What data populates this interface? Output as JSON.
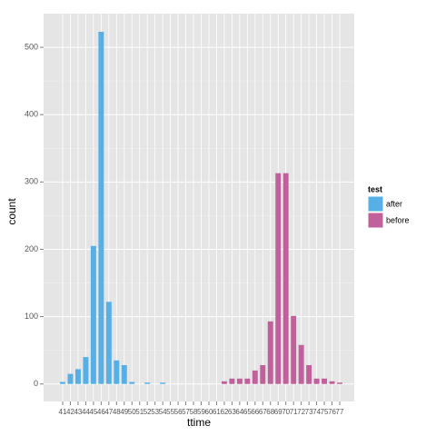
{
  "chart_data": {
    "type": "bar",
    "x_label": "ttime",
    "y_label": "count",
    "legend_title": "test",
    "categories": [
      "41",
      "42",
      "43",
      "44",
      "45",
      "46",
      "47",
      "48",
      "49",
      "50",
      "51",
      "52",
      "53",
      "54",
      "55",
      "56",
      "57",
      "58",
      "59",
      "60",
      "61",
      "62",
      "63",
      "64",
      "65",
      "66",
      "67",
      "68",
      "69",
      "70",
      "71",
      "72",
      "73",
      "74",
      "75",
      "76",
      "77"
    ],
    "series": [
      {
        "name": "after",
        "color": "#56B0E6",
        "values": [
          3,
          15,
          22,
          40,
          205,
          523,
          122,
          35,
          28,
          3,
          null,
          2,
          null,
          2,
          null,
          null,
          null,
          null,
          null,
          null,
          null,
          null,
          null,
          null,
          null,
          null,
          null,
          null,
          null,
          null,
          null,
          null,
          null,
          null,
          null,
          null,
          null
        ]
      },
      {
        "name": "before",
        "color": "#C0619C",
        "values": [
          null,
          null,
          null,
          null,
          null,
          null,
          null,
          null,
          null,
          null,
          null,
          null,
          null,
          null,
          null,
          null,
          null,
          null,
          null,
          null,
          null,
          4,
          8,
          8,
          8,
          20,
          28,
          93,
          313,
          313,
          101,
          58,
          28,
          8,
          8,
          4,
          2
        ]
      }
    ],
    "ylim": [
      -26,
      550
    ],
    "yticks": [
      0,
      100,
      200,
      300,
      400,
      500
    ],
    "grid": true
  }
}
